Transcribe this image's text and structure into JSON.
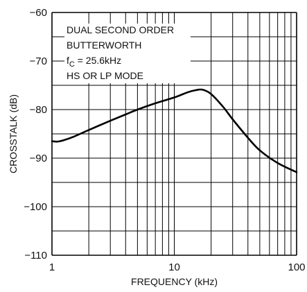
{
  "chart_data": {
    "type": "line",
    "title": "",
    "xlabel": "FREQUENCY (kHz)",
    "ylabel": "CROSSTALK (dB)",
    "x_scale": "log",
    "xlim": [
      1,
      100
    ],
    "ylim": [
      -110,
      -60
    ],
    "x_ticks": [
      {
        "value": 1,
        "label": "1"
      },
      {
        "value": 10,
        "label": "10"
      },
      {
        "value": 100,
        "label": "100"
      }
    ],
    "y_ticks": [
      {
        "value": -60,
        "label": "−60"
      },
      {
        "value": -70,
        "label": "−70"
      },
      {
        "value": -80,
        "label": "−80"
      },
      {
        "value": -90,
        "label": "−90"
      },
      {
        "value": -100,
        "label": "−100"
      },
      {
        "value": -110,
        "label": "−110"
      }
    ],
    "grid": true,
    "annotation": {
      "line1": "DUAL SECOND ORDER",
      "line2": "BUTTERWORTH",
      "line3_prefix": "f",
      "line3_sub": "C",
      "line3_rest": " = 25.6kHz",
      "line4": "HS OR LP MODE"
    },
    "series": [
      {
        "name": "",
        "color": "#000000",
        "x": [
          1,
          1.1,
          1.25,
          1.5,
          2,
          3,
          4,
          5,
          7,
          10,
          13,
          15,
          17,
          20,
          25,
          30,
          40,
          50,
          70,
          100
        ],
        "y": [
          -86.5,
          -86.6,
          -86.3,
          -85.6,
          -84.2,
          -82.3,
          -81.0,
          -80.0,
          -78.7,
          -77.5,
          -76.4,
          -76.0,
          -75.9,
          -76.8,
          -79.4,
          -82.0,
          -85.8,
          -88.4,
          -91.0,
          -92.9
        ]
      }
    ]
  }
}
